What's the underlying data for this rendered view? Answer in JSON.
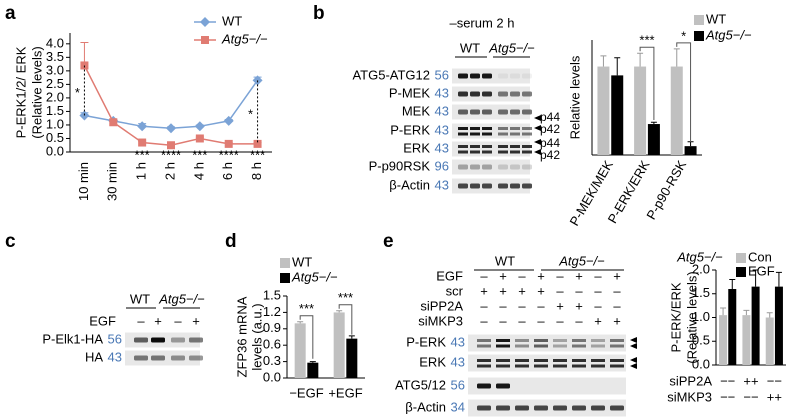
{
  "chart_data": [
    {
      "type": "line",
      "panel": "a",
      "y_label": [
        "P-ERK1/2/ ERK",
        "(Relative levels)"
      ],
      "categories": [
        "10 min",
        "30 min",
        "1 h",
        "2 h",
        "4 h",
        "6 h",
        "8 h"
      ],
      "series": [
        {
          "name": "WT",
          "color": "#7ba3d6",
          "marker": "diamond",
          "values": [
            1.35,
            1.15,
            0.95,
            0.88,
            0.95,
            1.15,
            2.65
          ],
          "errors": [
            0.1,
            0.05,
            0.1,
            0.05,
            0.05,
            0.05,
            0.12
          ]
        },
        {
          "name": "Atg5−/−",
          "color": "#e07b72",
          "marker": "square",
          "values": [
            3.2,
            1.1,
            0.35,
            0.25,
            0.5,
            0.3,
            0.3
          ],
          "errors": [
            0.85,
            0.05,
            0.05,
            0.03,
            0.05,
            0.04,
            0.05
          ]
        }
      ],
      "ylim": [
        0,
        4.4
      ],
      "yticks": [
        {
          "value": 0,
          "label": "0.0"
        },
        0.5,
        {
          "value": 1,
          "label": "1.0"
        },
        1.5,
        {
          "value": 2,
          "label": "2.0"
        },
        2.5,
        {
          "value": 3,
          "label": "3.0"
        },
        3.5,
        {
          "value": 4,
          "label": "4.0"
        }
      ],
      "significance_top": [
        "*",
        null,
        null,
        null,
        null,
        null,
        "*"
      ],
      "significance_bottom": [
        null,
        null,
        "***",
        "****",
        "***",
        "****",
        "***"
      ]
    },
    {
      "type": "bar",
      "y_label": [
        "Relative levels"
      ],
      "categories": [
        "P-MEK/MEK",
        "P-ERK/ERK",
        "P-p90-RSK"
      ],
      "series": [
        {
          "name": "WT",
          "color": "#c0c0c0",
          "values": [
            1.0,
            1.0,
            1.0
          ],
          "errors": [
            0.12,
            0.15,
            0.2
          ]
        },
        {
          "name": "Atg5−/−",
          "color": "#000000",
          "values": [
            0.9,
            0.35,
            0.1
          ],
          "errors": [
            0.2,
            0.02,
            0.05
          ]
        }
      ],
      "ylim": [
        0,
        1.3
      ],
      "significance": [
        null,
        "***",
        "*"
      ]
    },
    {
      "type": "bar",
      "panel": "d",
      "y_label": [
        "ZFP36 mRNA",
        "levels (a.u.)"
      ],
      "categories": [
        "−EGF",
        "+EGF"
      ],
      "series": [
        {
          "name": "WT",
          "color": "#c0c0c0",
          "values": [
            1.0,
            1.2
          ],
          "errors": [
            0.03,
            0.03
          ]
        },
        {
          "name": "Atg5−/−",
          "color": "#000000",
          "values": [
            0.28,
            0.72
          ],
          "errors": [
            0.02,
            0.05
          ]
        }
      ],
      "ylim": [
        0,
        1.5
      ],
      "yticks": [
        {
          "value": 0,
          "label": "0.0"
        },
        0.3,
        0.6,
        0.9,
        1.2,
        1.5
      ],
      "significance": [
        "***",
        "***"
      ]
    },
    {
      "type": "bar",
      "title": "Atg5−/−",
      "y_label": [
        "P-ERK/ERK",
        "(Relative levels)"
      ],
      "categories": [
        null,
        null,
        null
      ],
      "series": [
        {
          "name": "Con",
          "color": "#c0c0c0",
          "values": [
            1.05,
            1.05,
            1.0
          ],
          "errors": [
            0.15,
            0.1,
            0.1
          ]
        },
        {
          "name": "EGF",
          "color": "#000000",
          "values": [
            1.6,
            1.65,
            1.65
          ],
          "errors": [
            0.2,
            0.35,
            0.3
          ]
        }
      ],
      "ylim": [
        0,
        2
      ],
      "yticks": [
        {
          "value": 0,
          "label": "0.0"
        },
        0.5,
        {
          "value": 1,
          "label": "1.0"
        },
        1.5,
        {
          "value": 2,
          "label": "2.0"
        }
      ],
      "table": [
        {
          "label": "siPP2A",
          "cells": [
            "−−",
            "++",
            "−−"
          ]
        },
        {
          "label": "siMKP3",
          "cells": [
            "−−",
            "−−",
            "++"
          ]
        }
      ]
    }
  ],
  "blots": [
    {
      "panel": "b",
      "header": "–serum 2 h",
      "columns": [
        "WT",
        "Atg5−/−"
      ],
      "rows": [
        {
          "label": "ATG5-ATG12",
          "mw": 56
        },
        {
          "label": "P-MEK",
          "mw": 43
        },
        {
          "label": "MEK",
          "mw": 43
        },
        {
          "label": "P-ERK",
          "mw": 43
        },
        {
          "label": "ERK",
          "mw": 43
        },
        {
          "label": "P-p90RSK",
          "mw": 96
        },
        {
          "label": "β-Actin",
          "mw": 43
        }
      ],
      "side_labels": [
        "p44",
        "p42",
        "p44",
        "p42"
      ]
    },
    {
      "panel": "c",
      "columns": [
        "WT",
        "Atg5−/−"
      ],
      "conditions": [
        {
          "label": "EGF",
          "signs": [
            "–",
            "+",
            "–",
            "+"
          ]
        }
      ],
      "rows": [
        {
          "label": "P-Elk1-HA",
          "mw": 56
        },
        {
          "label": "HA",
          "mw": 43
        }
      ]
    },
    {
      "panel": "e",
      "columns": [
        "WT",
        "Atg5−/−"
      ],
      "conditions": [
        {
          "label": "EGF",
          "signs": [
            "–",
            "+",
            "–",
            "+",
            "–",
            "+",
            "–",
            "+"
          ]
        },
        {
          "label": "scr",
          "signs": [
            "+",
            "+",
            "+",
            "+",
            "–",
            "–",
            "–",
            "–"
          ]
        },
        {
          "label": "siPP2A",
          "signs": [
            "–",
            "–",
            "–",
            "–",
            "+",
            "+",
            "–",
            "–"
          ]
        },
        {
          "label": "siMKP3",
          "signs": [
            "–",
            "–",
            "–",
            "–",
            "–",
            "–",
            "+",
            "+"
          ]
        }
      ],
      "rows": [
        {
          "label": "P-ERK",
          "mw": 43
        },
        {
          "label": "ERK",
          "mw": 43
        },
        {
          "label": "ATG5/12",
          "mw": 56
        },
        {
          "label": "β-Actin",
          "mw": 34
        }
      ]
    }
  ]
}
